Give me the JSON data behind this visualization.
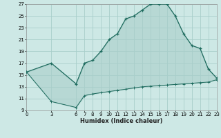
{
  "xlabel": "Humidex (Indice chaleur)",
  "bg_color": "#cde8e5",
  "grid_color": "#a8ceca",
  "line_color": "#1e6b5e",
  "xlim": [
    0,
    23
  ],
  "ylim": [
    9,
    27
  ],
  "xticks": [
    0,
    3,
    6,
    7,
    8,
    9,
    10,
    11,
    12,
    13,
    14,
    15,
    16,
    17,
    18,
    19,
    20,
    21,
    22,
    23
  ],
  "yticks": [
    9,
    11,
    13,
    15,
    17,
    19,
    21,
    23,
    25,
    27
  ],
  "upper_x": [
    0,
    3,
    6,
    7,
    8,
    9,
    10,
    11,
    12,
    13,
    14,
    15,
    16,
    17,
    18,
    19,
    20,
    21,
    22,
    23
  ],
  "upper_y": [
    15.5,
    17.0,
    13.5,
    17.0,
    17.5,
    19.0,
    21.0,
    22.0,
    24.5,
    25.0,
    26.0,
    27.0,
    27.0,
    27.0,
    25.0,
    22.0,
    20.0,
    19.5,
    16.0,
    14.5
  ],
  "lower_x": [
    0,
    3,
    6,
    7,
    8,
    9,
    10,
    11,
    12,
    13,
    14,
    15,
    16,
    17,
    18,
    19,
    20,
    21,
    22,
    23
  ],
  "lower_y": [
    15.5,
    10.5,
    9.5,
    11.5,
    11.8,
    12.0,
    12.2,
    12.4,
    12.6,
    12.8,
    13.0,
    13.1,
    13.2,
    13.3,
    13.4,
    13.5,
    13.6,
    13.7,
    13.8,
    14.2
  ]
}
